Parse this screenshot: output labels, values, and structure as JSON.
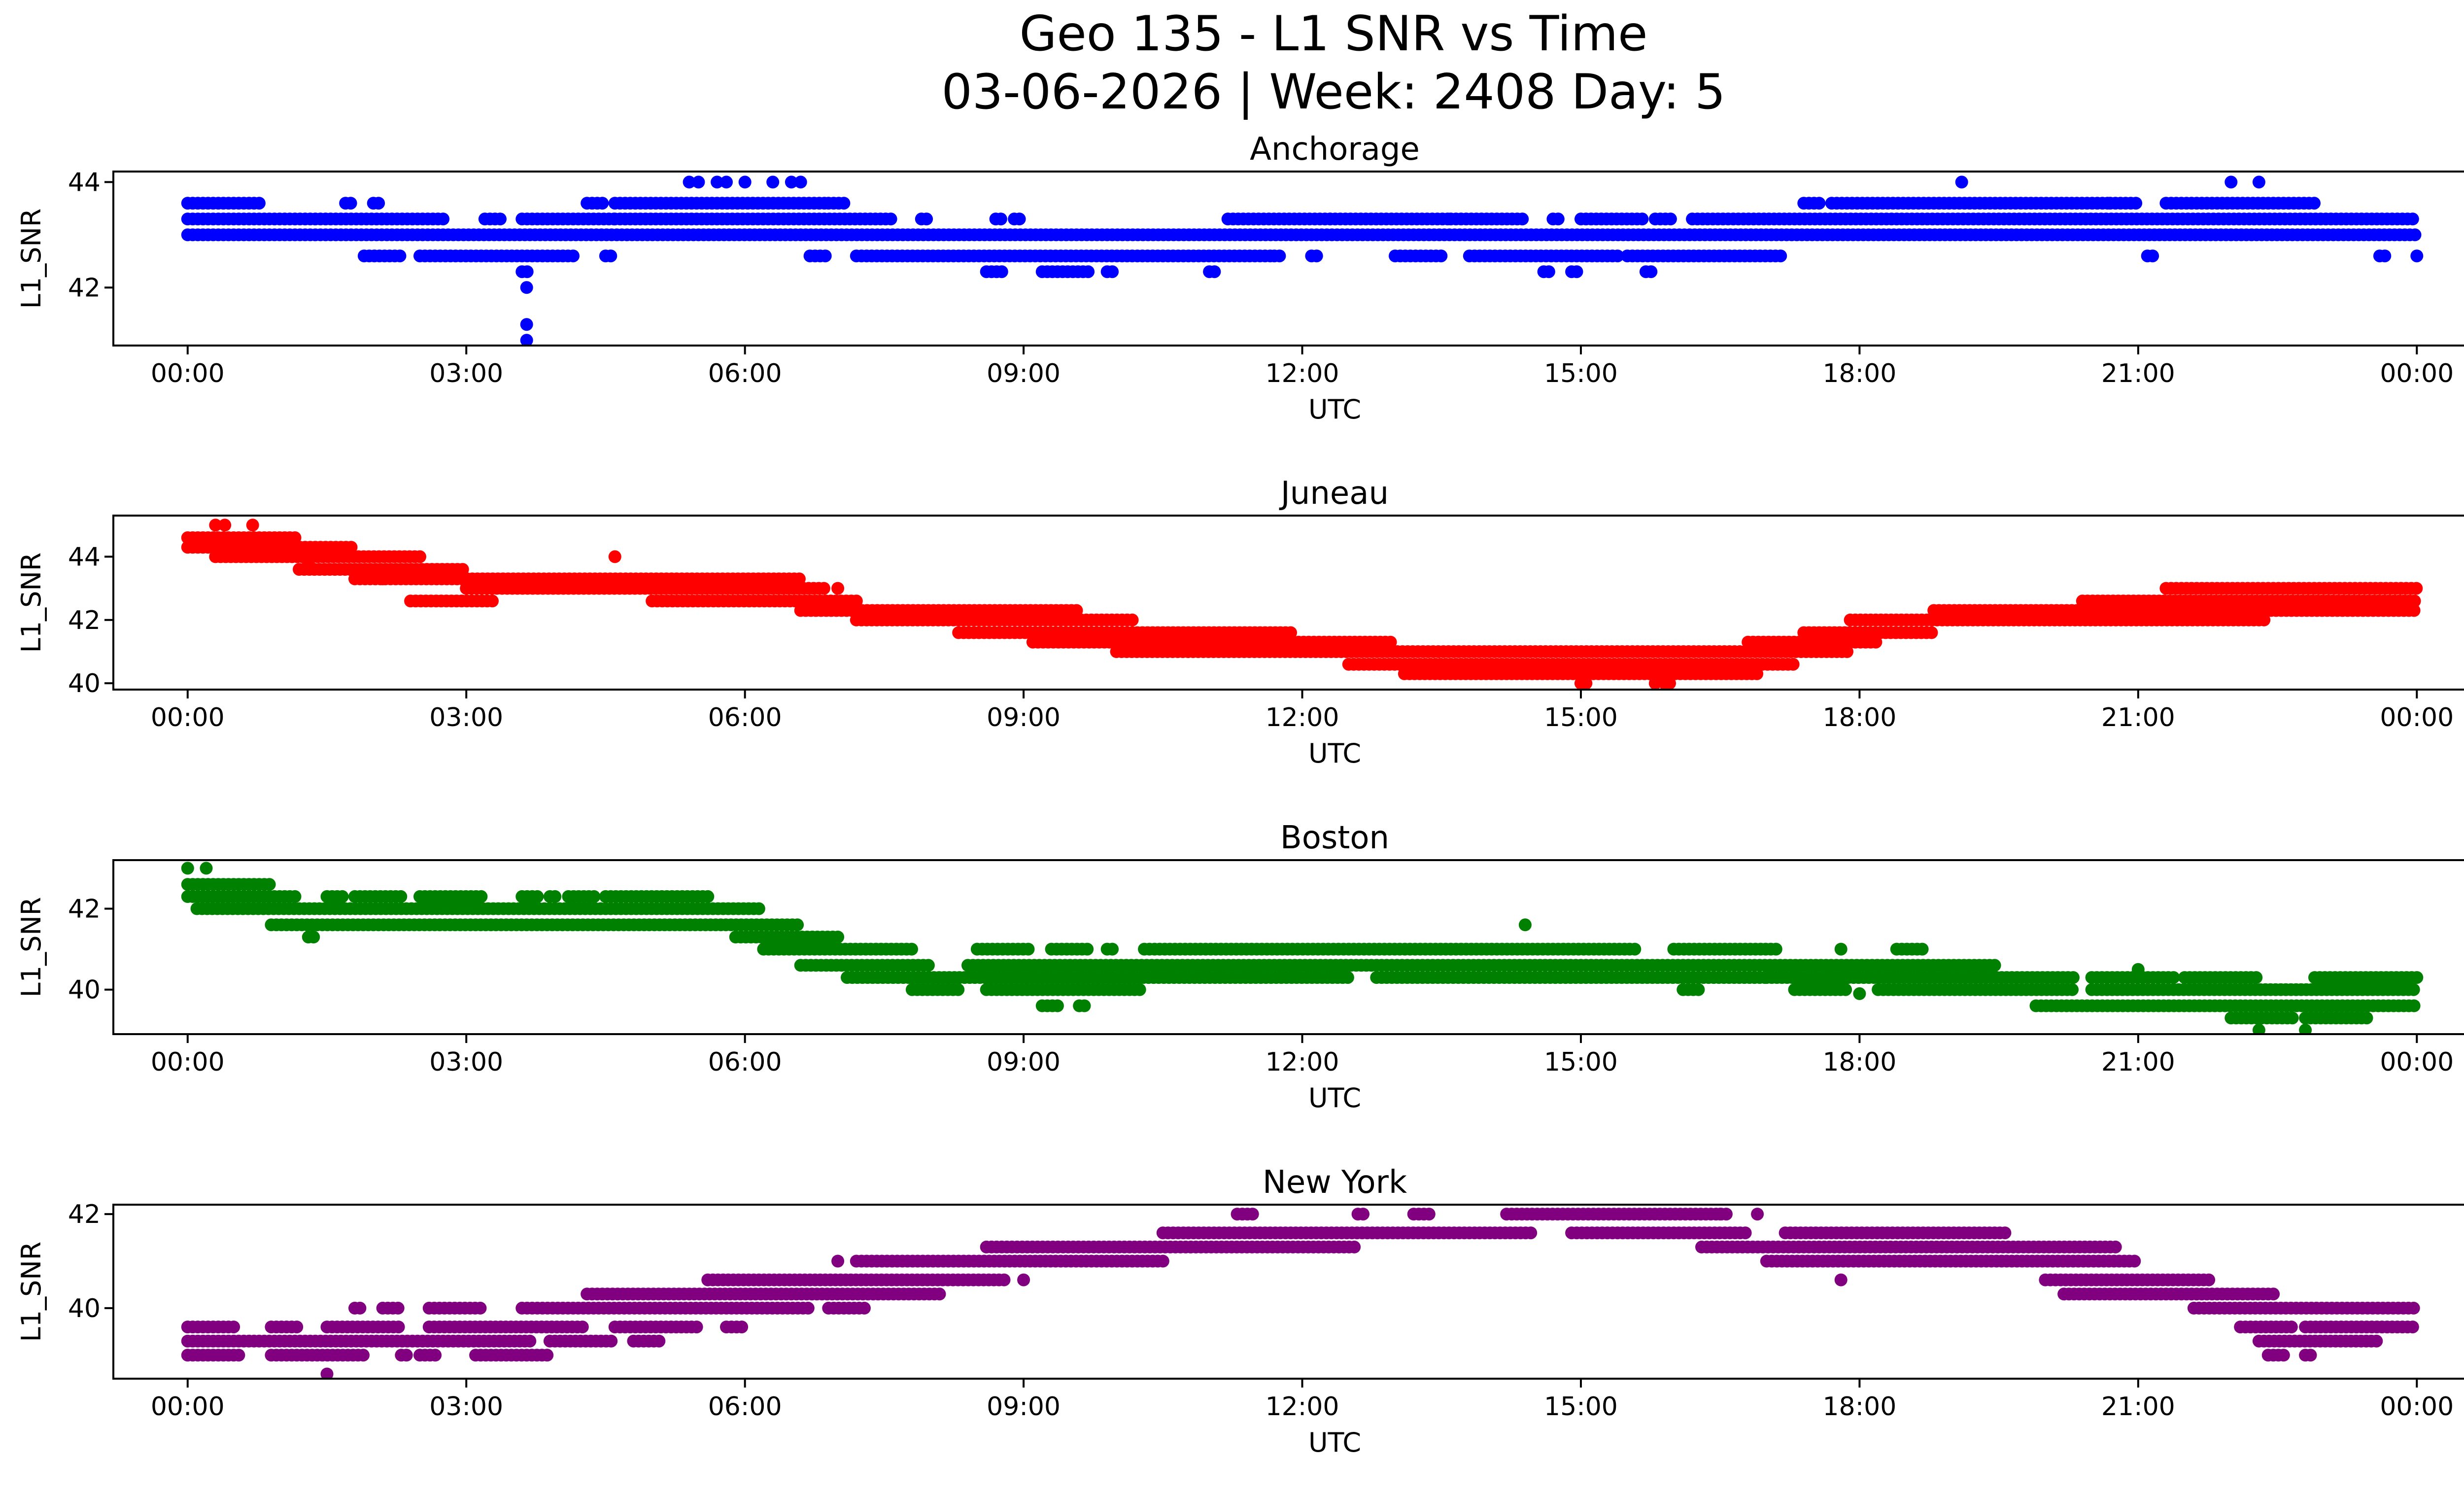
{
  "figure": {
    "title_line1": "Geo 135 - L1 SNR vs Time",
    "title_line2": "03-06-2026 | Week: 2408 Day: 5"
  },
  "chart_data": [
    {
      "type": "scatter",
      "title": "Anchorage",
      "xlabel": "UTC",
      "ylabel": "L1_SNR",
      "color": "#0000ff",
      "x_ticks": [
        "00:00",
        "03:00",
        "06:00",
        "09:00",
        "12:00",
        "15:00",
        "18:00",
        "21:00",
        "00:00"
      ],
      "y_ticks": [
        42,
        44
      ],
      "xlim": [
        -0.8,
        25.5
      ],
      "ylim": [
        40.9,
        44.2
      ],
      "grid": false,
      "bands": [
        {
          "value": 43.6,
          "ranges": [
            [
              0,
              0.8
            ],
            [
              1.7,
              1.8
            ],
            [
              2.0,
              2.1
            ],
            [
              4.3,
              4.5
            ],
            [
              4.6,
              6.9
            ],
            [
              6.9,
              7.1
            ],
            [
              17.4,
              17.6
            ],
            [
              17.7,
              20.7
            ],
            [
              20.7,
              21.0
            ],
            [
              21.3,
              22.9
            ]
          ]
        },
        {
          "value": 43.3,
          "ranges": [
            [
              0,
              2.8
            ],
            [
              3.2,
              3.4
            ],
            [
              3.6,
              4.6
            ],
            [
              4.6,
              7.6
            ],
            [
              7.9,
              8.0
            ],
            [
              8.7,
              8.8
            ],
            [
              8.9,
              9.0
            ],
            [
              11.2,
              12.3
            ],
            [
              12.3,
              13.6
            ],
            [
              13.6,
              14.4
            ],
            [
              14.7,
              14.8
            ],
            [
              15.0,
              15.7
            ],
            [
              15.8,
              16.0
            ],
            [
              16.2,
              24.0
            ]
          ]
        },
        {
          "value": 43.0,
          "ranges": [
            [
              0,
              24.0
            ]
          ]
        },
        {
          "value": 42.6,
          "ranges": [
            [
              1.9,
              2.3
            ],
            [
              2.5,
              4.2
            ],
            [
              4.5,
              4.6
            ],
            [
              6.7,
              6.9
            ],
            [
              7.2,
              11.7
            ],
            [
              11.7,
              11.8
            ],
            [
              12.1,
              12.2
            ],
            [
              13.0,
              13.5
            ],
            [
              13.8,
              15.4
            ],
            [
              15.5,
              17.2
            ],
            [
              21.1,
              21.2
            ],
            [
              23.6,
              23.7
            ],
            [
              24.0,
              24.0
            ]
          ]
        },
        {
          "value": 42.3,
          "ranges": [
            [
              3.6,
              3.7
            ],
            [
              8.6,
              8.8
            ],
            [
              9.2,
              9.7
            ],
            [
              9.9,
              10.0
            ],
            [
              11.0,
              11.1
            ],
            [
              14.6,
              14.7
            ],
            [
              14.9,
              15.0
            ],
            [
              15.7,
              15.8
            ]
          ]
        }
      ],
      "points": [
        [
          3.65,
          42.0
        ],
        [
          3.65,
          41.3
        ],
        [
          3.65,
          41.0
        ],
        [
          5.4,
          44.0
        ],
        [
          5.5,
          44.0
        ],
        [
          5.7,
          44.0
        ],
        [
          5.8,
          44.0
        ],
        [
          6.0,
          44.0
        ],
        [
          6.3,
          44.0
        ],
        [
          6.5,
          44.0
        ],
        [
          6.6,
          44.0
        ],
        [
          19.1,
          44.0
        ],
        [
          22.0,
          44.0
        ],
        [
          22.3,
          44.0
        ]
      ]
    },
    {
      "type": "scatter",
      "title": "Juneau",
      "xlabel": "UTC",
      "ylabel": "L1_SNR",
      "color": "#ff0000",
      "x_ticks": [
        "00:00",
        "03:00",
        "06:00",
        "09:00",
        "12:00",
        "15:00",
        "18:00",
        "21:00",
        "00:00"
      ],
      "y_ticks": [
        40,
        42,
        44
      ],
      "xlim": [
        -0.8,
        25.5
      ],
      "ylim": [
        39.8,
        45.3
      ],
      "grid": false,
      "bands": [
        {
          "value": 44.6,
          "ranges": [
            [
              0,
              1.2
            ]
          ]
        },
        {
          "value": 44.3,
          "ranges": [
            [
              0,
              1.8
            ]
          ]
        },
        {
          "value": 44.0,
          "ranges": [
            [
              0.3,
              2.5
            ]
          ]
        },
        {
          "value": 43.6,
          "ranges": [
            [
              1.2,
              3.0
            ]
          ]
        },
        {
          "value": 43.3,
          "ranges": [
            [
              1.8,
              6.6
            ]
          ]
        },
        {
          "value": 43.0,
          "ranges": [
            [
              3.0,
              6.9
            ]
          ]
        },
        {
          "value": 42.6,
          "ranges": [
            [
              5.0,
              7.2
            ],
            [
              2.4,
              3.3
            ]
          ]
        },
        {
          "value": 42.3,
          "ranges": [
            [
              6.6,
              9.6
            ]
          ]
        },
        {
          "value": 42.0,
          "ranges": [
            [
              7.2,
              10.2
            ]
          ]
        },
        {
          "value": 41.6,
          "ranges": [
            [
              8.3,
              11.9
            ]
          ]
        },
        {
          "value": 41.3,
          "ranges": [
            [
              9.1,
              13.0
            ]
          ]
        },
        {
          "value": 41.0,
          "ranges": [
            [
              10.0,
              17.9
            ]
          ]
        },
        {
          "value": 40.6,
          "ranges": [
            [
              12.5,
              17.3
            ]
          ]
        },
        {
          "value": 40.3,
          "ranges": [
            [
              13.1,
              16.9
            ]
          ]
        },
        {
          "value": 40.0,
          "ranges": [
            [
              15.0,
              15.1
            ],
            [
              15.9,
              16.0
            ]
          ]
        },
        {
          "value": 41.3,
          "ranges": [
            [
              16.8,
              18.2
            ]
          ]
        },
        {
          "value": 41.6,
          "ranges": [
            [
              17.4,
              18.8
            ]
          ]
        },
        {
          "value": 42.0,
          "ranges": [
            [
              17.9,
              22.4
            ]
          ]
        },
        {
          "value": 42.3,
          "ranges": [
            [
              18.8,
              24.0
            ]
          ]
        },
        {
          "value": 42.6,
          "ranges": [
            [
              20.4,
              24.0
            ]
          ]
        },
        {
          "value": 43.0,
          "ranges": [
            [
              21.3,
              24.0
            ]
          ]
        }
      ],
      "points": [
        [
          0.3,
          45.0
        ],
        [
          0.4,
          45.0
        ],
        [
          0.7,
          45.0
        ],
        [
          4.6,
          44.0
        ],
        [
          7.0,
          43.0
        ],
        [
          1.3,
          43.8
        ],
        [
          2.1,
          43.3
        ],
        [
          9.4,
          41.6
        ],
        [
          15.0,
          40.0
        ],
        [
          15.8,
          40.0
        ]
      ]
    },
    {
      "type": "scatter",
      "title": "Boston",
      "xlabel": "UTC",
      "ylabel": "L1_SNR",
      "color": "#008000",
      "x_ticks": [
        "00:00",
        "03:00",
        "06:00",
        "09:00",
        "12:00",
        "15:00",
        "18:00",
        "21:00",
        "00:00"
      ],
      "y_ticks": [
        40,
        42
      ],
      "xlim": [
        -0.8,
        25.5
      ],
      "ylim": [
        38.9,
        43.2
      ],
      "grid": false,
      "bands": [
        {
          "value": 42.6,
          "ranges": [
            [
              0,
              0.9
            ]
          ]
        },
        {
          "value": 42.3,
          "ranges": [
            [
              0,
              1.2
            ],
            [
              1.5,
              1.7
            ],
            [
              1.8,
              2.3
            ],
            [
              2.5,
              3.2
            ],
            [
              3.6,
              3.8
            ],
            [
              3.9,
              4.0
            ],
            [
              4.1,
              4.4
            ],
            [
              4.5,
              5.6
            ]
          ]
        },
        {
          "value": 42.0,
          "ranges": [
            [
              0.1,
              6.2
            ]
          ]
        },
        {
          "value": 41.6,
          "ranges": [
            [
              0.9,
              6.6
            ]
          ]
        },
        {
          "value": 41.3,
          "ranges": [
            [
              1.3,
              1.4
            ],
            [
              5.9,
              7.0
            ]
          ]
        },
        {
          "value": 41.0,
          "ranges": [
            [
              6.2,
              7.8
            ],
            [
              8.5,
              9.1
            ],
            [
              9.3,
              9.7
            ],
            [
              9.9,
              10.0
            ],
            [
              10.3,
              15.6
            ],
            [
              16.0,
              17.1
            ],
            [
              18.4,
              18.7
            ]
          ]
        },
        {
          "value": 40.6,
          "ranges": [
            [
              6.6,
              8.0
            ],
            [
              8.4,
              19.5
            ]
          ]
        },
        {
          "value": 40.3,
          "ranges": [
            [
              7.1,
              12.5
            ],
            [
              12.8,
              17.0
            ],
            [
              17.0,
              20.3
            ],
            [
              20.5,
              21.4
            ],
            [
              21.5,
              22.3
            ],
            [
              22.9,
              24.0
            ]
          ]
        },
        {
          "value": 40.0,
          "ranges": [
            [
              7.8,
              8.3
            ],
            [
              8.6,
              10.3
            ],
            [
              16.1,
              16.3
            ],
            [
              17.3,
              17.9
            ],
            [
              18.2,
              20.3
            ],
            [
              20.5,
              24.0
            ]
          ]
        },
        {
          "value": 39.6,
          "ranges": [
            [
              9.2,
              9.4
            ],
            [
              9.6,
              9.7
            ],
            [
              19.9,
              24.0
            ]
          ]
        },
        {
          "value": 39.3,
          "ranges": [
            [
              22.0,
              22.7
            ],
            [
              22.8,
              23.5
            ]
          ]
        }
      ],
      "points": [
        [
          0.0,
          43.0
        ],
        [
          0.2,
          43.0
        ],
        [
          14.4,
          41.6
        ],
        [
          17.8,
          41.0
        ],
        [
          18.0,
          39.9
        ],
        [
          22.3,
          39.0
        ],
        [
          22.8,
          39.0
        ],
        [
          21.0,
          40.5
        ]
      ]
    },
    {
      "type": "scatter",
      "title": "New York",
      "xlabel": "UTC",
      "ylabel": "L1_SNR",
      "color": "#800080",
      "x_ticks": [
        "00:00",
        "03:00",
        "06:00",
        "09:00",
        "12:00",
        "15:00",
        "18:00",
        "21:00",
        "00:00"
      ],
      "y_ticks": [
        40,
        42
      ],
      "xlim": [
        -0.8,
        25.5
      ],
      "ylim": [
        38.5,
        42.2
      ],
      "grid": false,
      "bands": [
        {
          "value": 39.6,
          "ranges": [
            [
              0,
              0.5
            ],
            [
              0.9,
              1.2
            ],
            [
              1.5,
              2.3
            ],
            [
              2.6,
              4.3
            ],
            [
              4.6,
              5.5
            ],
            [
              5.8,
              6.0
            ],
            [
              22.1,
              22.7
            ],
            [
              22.8,
              24.0
            ]
          ]
        },
        {
          "value": 39.3,
          "ranges": [
            [
              0,
              3.7
            ],
            [
              3.9,
              4.6
            ],
            [
              4.8,
              5.1
            ],
            [
              22.3,
              23.6
            ]
          ]
        },
        {
          "value": 39.0,
          "ranges": [
            [
              0,
              0.6
            ],
            [
              0.9,
              1.9
            ],
            [
              2.3,
              2.4
            ],
            [
              2.5,
              2.7
            ],
            [
              3.1,
              3.9
            ],
            [
              22.4,
              22.6
            ],
            [
              22.8,
              22.9
            ]
          ]
        },
        {
          "value": 40.0,
          "ranges": [
            [
              1.8,
              1.9
            ],
            [
              2.1,
              2.3
            ],
            [
              2.6,
              3.2
            ],
            [
              3.6,
              6.7
            ],
            [
              6.9,
              7.3
            ],
            [
              21.6,
              24.0
            ]
          ]
        },
        {
          "value": 40.3,
          "ranges": [
            [
              4.3,
              8.1
            ],
            [
              20.2,
              22.5
            ]
          ]
        },
        {
          "value": 40.6,
          "ranges": [
            [
              5.6,
              8.8
            ],
            [
              20.0,
              21.8
            ]
          ]
        },
        {
          "value": 41.0,
          "ranges": [
            [
              7.2,
              10.5
            ],
            [
              17.0,
              21.0
            ]
          ]
        },
        {
          "value": 41.3,
          "ranges": [
            [
              8.6,
              12.6
            ],
            [
              16.3,
              20.8
            ]
          ]
        },
        {
          "value": 41.6,
          "ranges": [
            [
              10.5,
              14.5
            ],
            [
              14.9,
              16.8
            ],
            [
              17.2,
              19.6
            ]
          ]
        },
        {
          "value": 42.0,
          "ranges": [
            [
              11.3,
              11.5
            ],
            [
              12.6,
              12.7
            ],
            [
              13.2,
              13.4
            ],
            [
              14.2,
              16.6
            ]
          ]
        }
      ],
      "points": [
        [
          1.5,
          38.6
        ],
        [
          9.0,
          40.6
        ],
        [
          7.0,
          41.0
        ],
        [
          17.8,
          40.6
        ],
        [
          16.5,
          42.0
        ],
        [
          16.9,
          42.0
        ]
      ]
    }
  ]
}
